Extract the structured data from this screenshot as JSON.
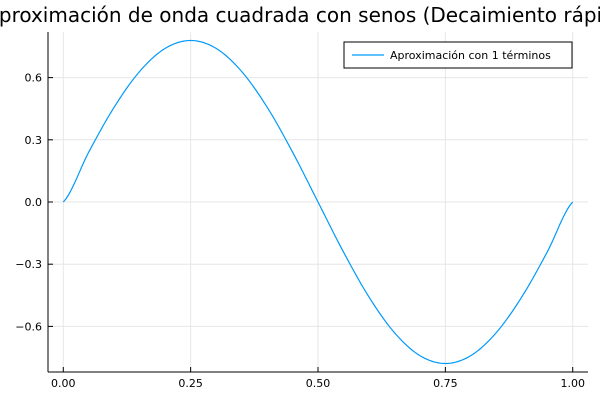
{
  "chart_data": {
    "type": "line",
    "title": "Aproximación de onda cuadrada con senos (Decaimiento rápido)",
    "xlabel": "",
    "ylabel": "",
    "xlim": [
      -0.03,
      1.03
    ],
    "ylim": [
      -0.82,
      0.82
    ],
    "x_ticks": [
      0.0,
      0.25,
      0.5,
      0.75,
      1.0
    ],
    "x_tick_labels": [
      "0.00",
      "0.25",
      "0.50",
      "0.75",
      "1.00"
    ],
    "y_ticks": [
      -0.6,
      -0.3,
      0.0,
      0.3,
      0.6
    ],
    "y_tick_labels": [
      "−0.6",
      "−0.3",
      "0.0",
      "0.3",
      "0.6"
    ],
    "grid": true,
    "legend_position": "top-right",
    "series": [
      {
        "name": "Aproximación con 1 términos",
        "color": "#009AFA",
        "x": [
          0.0,
          0.05,
          0.1,
          0.15,
          0.2,
          0.25,
          0.3,
          0.35,
          0.4,
          0.45,
          0.5,
          0.55,
          0.6,
          0.65,
          0.7,
          0.75,
          0.8,
          0.85,
          0.9,
          0.95,
          1.0
        ],
        "y": [
          0.0,
          0.241,
          0.458,
          0.63,
          0.741,
          0.779,
          0.741,
          0.63,
          0.458,
          0.241,
          0.0,
          -0.241,
          -0.458,
          -0.63,
          -0.741,
          -0.779,
          -0.741,
          -0.63,
          -0.458,
          -0.241,
          0.0
        ]
      }
    ]
  }
}
